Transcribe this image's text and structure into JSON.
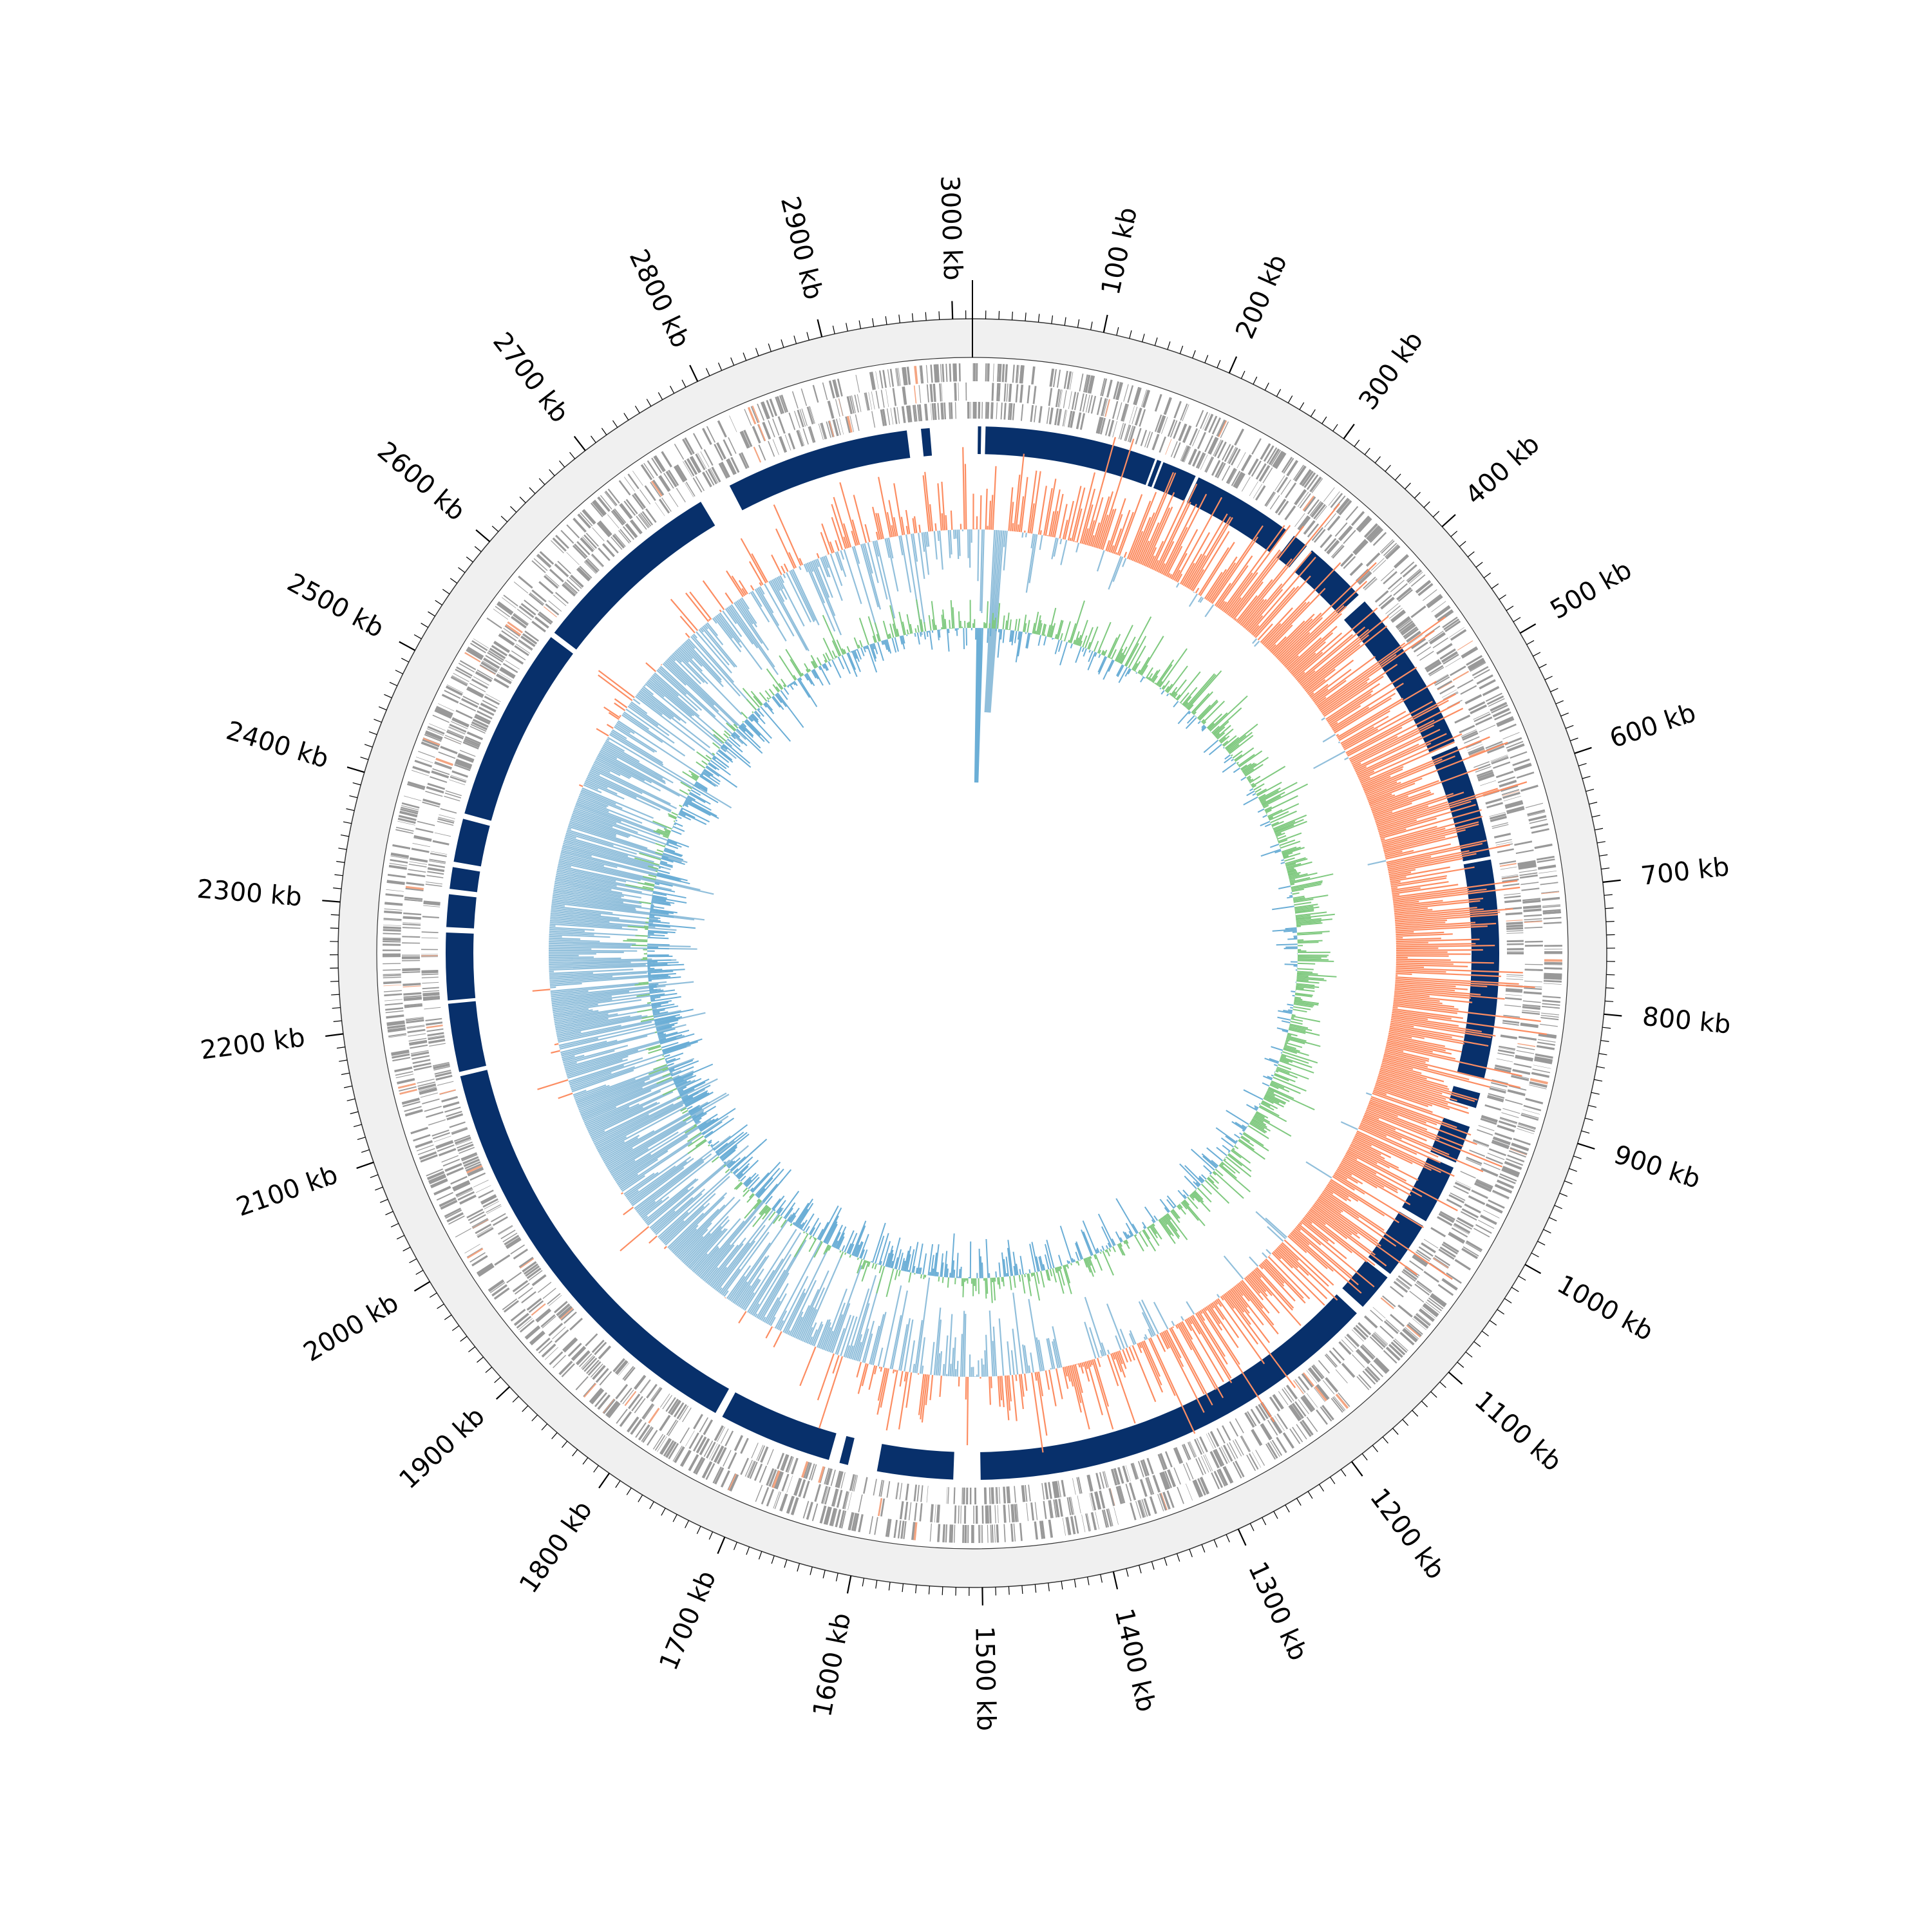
{
  "chart_data": {
    "type": "circular-genome",
    "genome_length_kb": 3015,
    "axis": {
      "unit": "kb",
      "major_tick_interval_kb": 100,
      "minor_tick_interval_kb": 10,
      "tick_labels": [
        "100 kb",
        "200 kb",
        "300 kb",
        "400 kb",
        "500 kb",
        "600 kb",
        "700 kb",
        "800 kb",
        "900 kb",
        "1000 kb",
        "1100 kb",
        "1200 kb",
        "1300 kb",
        "1400 kb",
        "1500 kb",
        "1600 kb",
        "1700 kb",
        "1800 kb",
        "1900 kb",
        "2000 kb",
        "2100 kb",
        "2200 kb",
        "2300 kb",
        "2400 kb",
        "2500 kb",
        "2600 kb",
        "2700 kb",
        "2800 kb",
        "2900 kb",
        "3000 kb"
      ]
    },
    "tracks": {
      "features": {
        "color": "#999999",
        "highlight_color": "#f4a582",
        "density_per_kb": 0.9
      },
      "aligned_blocks": {
        "color": "#08306b",
        "blocks_kb": [
          [
            5,
            8
          ],
          [
            12,
            170
          ],
          [
            172,
            176
          ],
          [
            178,
            210
          ],
          [
            213,
            306
          ],
          [
            315,
            330
          ],
          [
            336,
            395
          ],
          [
            403,
            555
          ],
          [
            560,
            665
          ],
          [
            668,
            870
          ],
          [
            883,
            897
          ],
          [
            915,
            950
          ],
          [
            955,
            1010
          ],
          [
            1015,
            1068
          ],
          [
            1072,
            1107
          ],
          [
            1115,
            1500
          ],
          [
            1525,
            1595
          ],
          [
            1622,
            1630
          ],
          [
            1640,
            1745
          ],
          [
            1752,
            2148
          ],
          [
            2152,
            2215
          ],
          [
            2218,
            2280
          ],
          [
            2285,
            2315
          ],
          [
            2320,
            2340
          ],
          [
            2345,
            2385
          ],
          [
            2390,
            2570
          ],
          [
            2575,
            2755
          ],
          [
            2785,
            2955
          ],
          [
            2968,
            2976
          ]
        ]
      },
      "gc_content": {
        "positive_color": "#fc8d62",
        "negative_color": "#91bfdb",
        "baseline": "mean"
      },
      "gc_skew": {
        "positive_color": "#7fc97f",
        "negative_color": "#6baed6",
        "baseline": "zero"
      }
    },
    "colors": {
      "ring_background": "#f0f0f0",
      "outline": "#333333"
    }
  }
}
